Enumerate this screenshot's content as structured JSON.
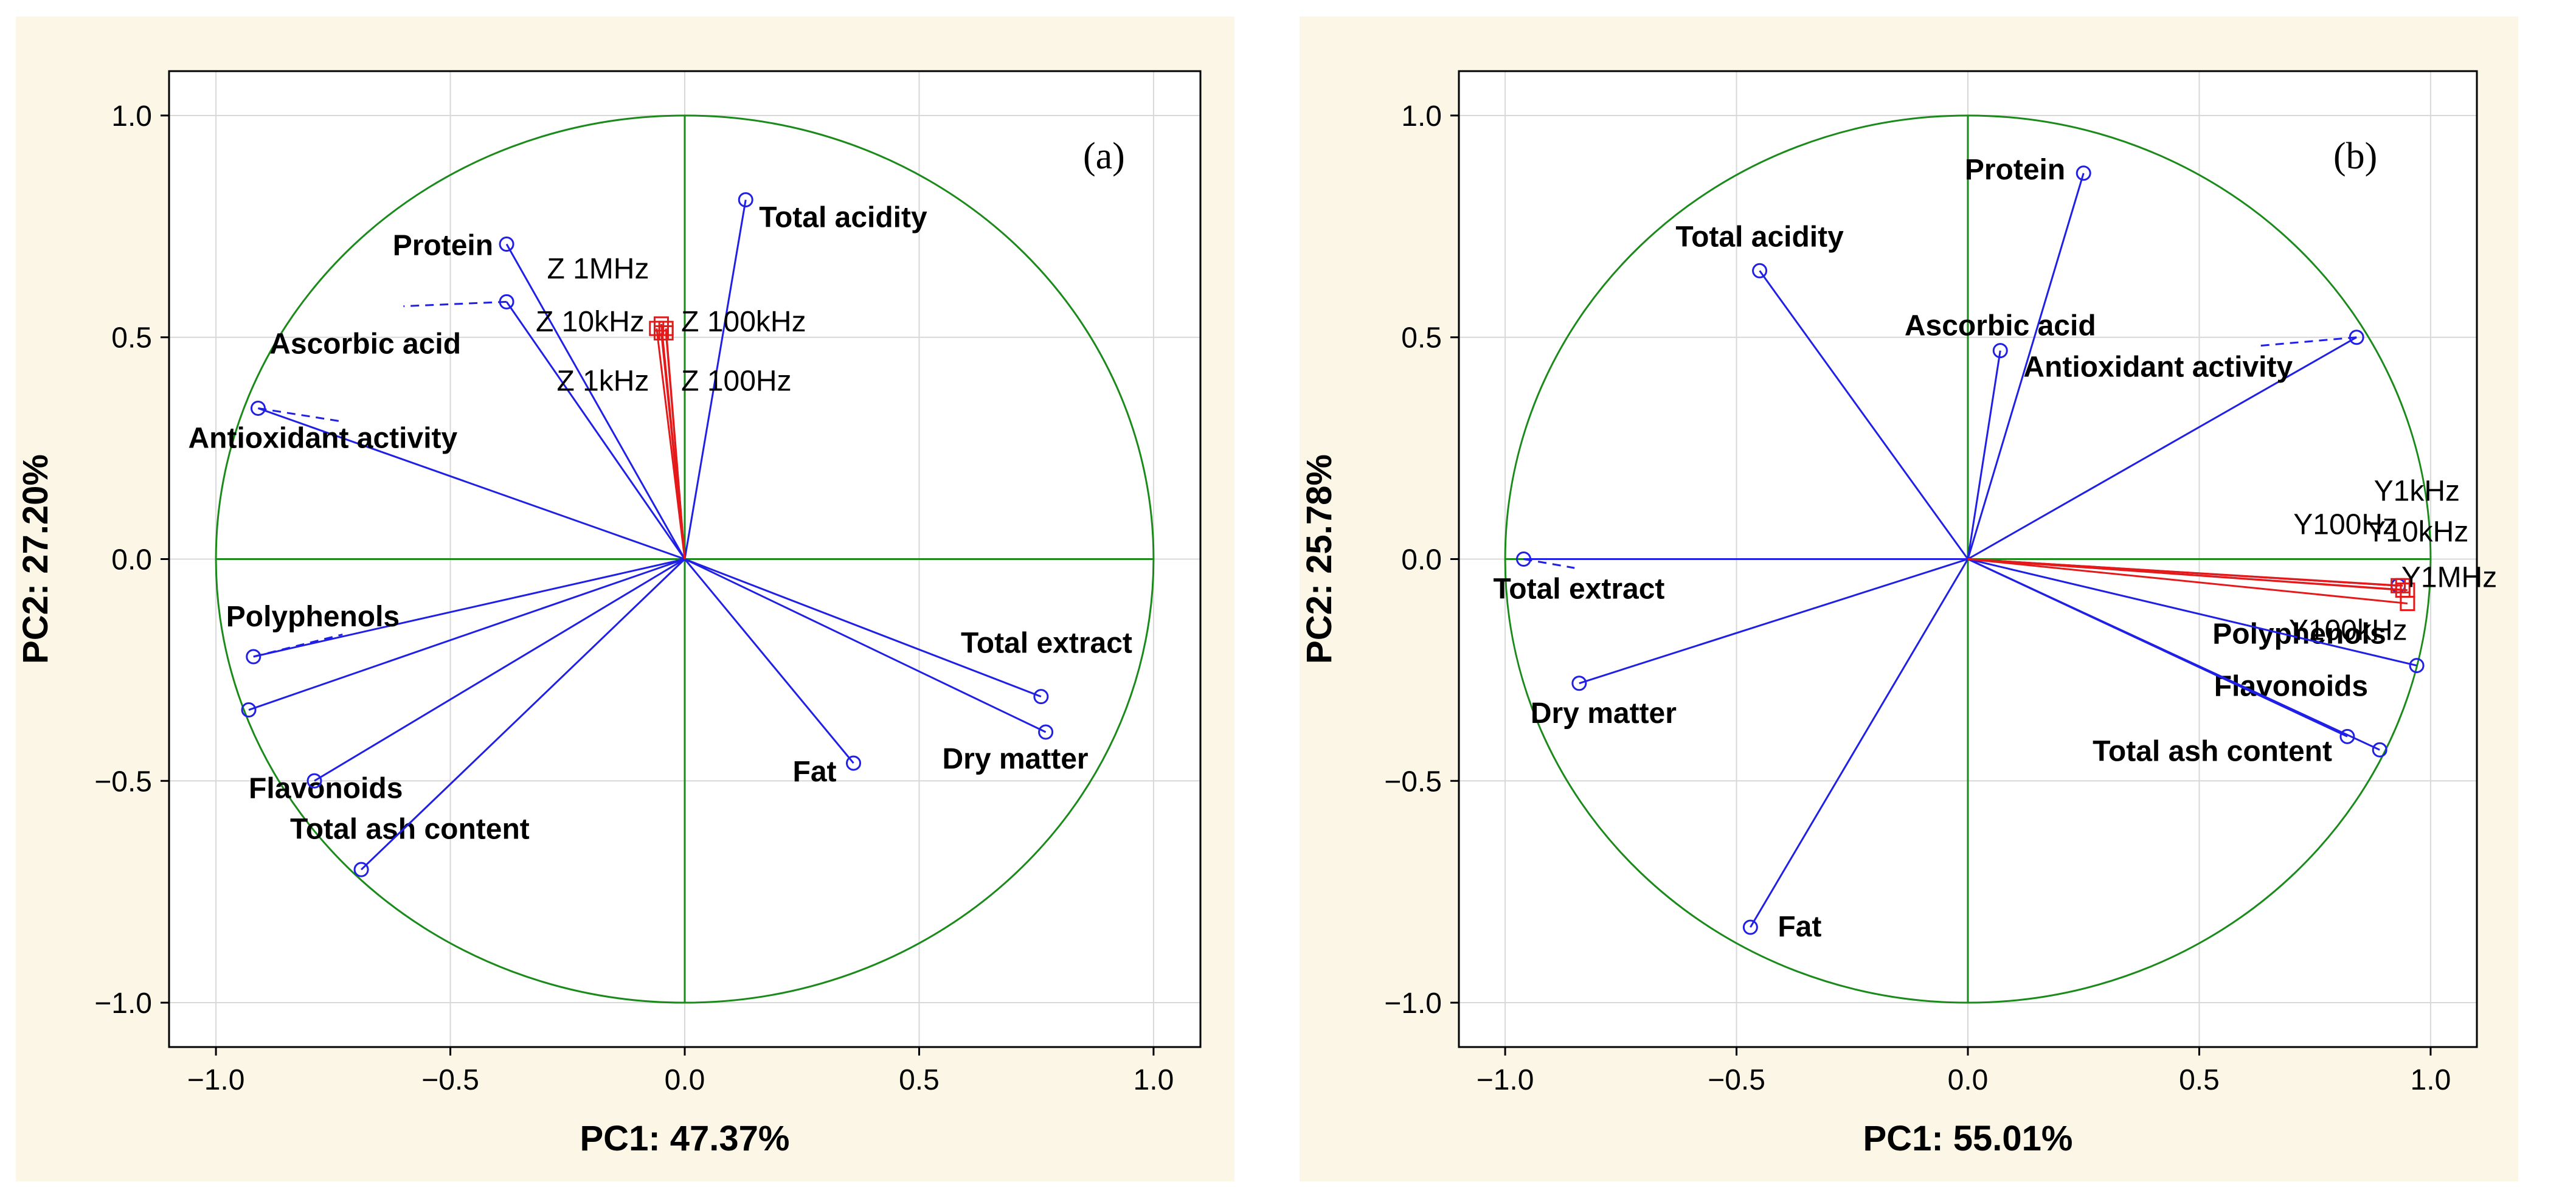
{
  "colors": {
    "background": "#fcf6e7",
    "plot_bg": "#ffffff",
    "circle": "#1a8a1a",
    "vector": "#1f1fe6",
    "impedance": "#e41a1a",
    "grid": "#d8d8d8"
  },
  "chart_data": [
    {
      "type": "scatter",
      "subtype": "pca-correlation-circle",
      "panel_label": "(a)",
      "xlabel": "PC1: 47.37%",
      "ylabel": "PC2: 27.20%",
      "xlim": [
        -1.1,
        1.1
      ],
      "ylim": [
        -1.1,
        1.1
      ],
      "x_ticks": [
        -1.0,
        -0.5,
        0.0,
        0.5,
        1.0
      ],
      "y_ticks": [
        -1.0,
        -0.5,
        0.0,
        0.5,
        1.0
      ],
      "x_tick_labels": [
        "−1.0",
        "−0.5",
        "0.0",
        "0.5",
        "1.0"
      ],
      "y_tick_labels": [
        "−1.0",
        "−0.5",
        "0.0",
        "0.5",
        "1.0"
      ],
      "grid": true,
      "variables": [
        {
          "name": "Total acidity",
          "x": 0.13,
          "y": 0.81
        },
        {
          "name": "Protein",
          "x": -0.38,
          "y": 0.71
        },
        {
          "name": "Ascorbic acid",
          "x": -0.38,
          "y": 0.58
        },
        {
          "name": "Antioxidant activity",
          "x": -0.91,
          "y": 0.34
        },
        {
          "name": "Polyphenols",
          "x": -0.92,
          "y": -0.22
        },
        {
          "name": "Flavonoids",
          "x": -0.93,
          "y": -0.34
        },
        {
          "name": "Total ash content",
          "x": -0.79,
          "y": -0.5
        },
        {
          "name": "Total ash content",
          "x": -0.69,
          "y": -0.7,
          "label": false
        },
        {
          "name": "Fat",
          "x": 0.36,
          "y": -0.46
        },
        {
          "name": "Total extract",
          "x": 0.76,
          "y": -0.31
        },
        {
          "name": "Dry matter",
          "x": 0.77,
          "y": -0.39
        }
      ],
      "impedance": [
        {
          "name": "Z 1MHz",
          "x": -0.05,
          "y": 0.53
        },
        {
          "name": "Z 10kHz",
          "x": -0.06,
          "y": 0.52
        },
        {
          "name": "Z 100kHz",
          "x": -0.04,
          "y": 0.52
        },
        {
          "name": "Z 1kHz",
          "x": -0.05,
          "y": 0.51
        },
        {
          "name": "Z 100Hz",
          "x": -0.04,
          "y": 0.51
        }
      ]
    },
    {
      "type": "scatter",
      "subtype": "pca-correlation-circle",
      "panel_label": "(b)",
      "xlabel": "PC1: 55.01%",
      "ylabel": "PC2: 25.78%",
      "xlim": [
        -1.1,
        1.1
      ],
      "ylim": [
        -1.1,
        1.1
      ],
      "x_ticks": [
        -1.0,
        -0.5,
        0.0,
        0.5,
        1.0
      ],
      "y_ticks": [
        -1.0,
        -0.5,
        0.0,
        0.5,
        1.0
      ],
      "x_tick_labels": [
        "−1.0",
        "−0.5",
        "0.0",
        "0.5",
        "1.0"
      ],
      "y_tick_labels": [
        "−1.0",
        "−0.5",
        "0.0",
        "0.5",
        "1.0"
      ],
      "grid": true,
      "variables": [
        {
          "name": "Protein",
          "x": 0.25,
          "y": 0.87
        },
        {
          "name": "Total acidity",
          "x": -0.45,
          "y": 0.65
        },
        {
          "name": "Ascorbic acid",
          "x": 0.07,
          "y": 0.47
        },
        {
          "name": "Antioxidant activity",
          "x": 0.84,
          "y": 0.5
        },
        {
          "name": "Total extract",
          "x": -0.96,
          "y": 0.0
        },
        {
          "name": "Dry matter",
          "x": -0.84,
          "y": -0.28
        },
        {
          "name": "Polyphenols",
          "x": 0.93,
          "y": -0.06
        },
        {
          "name": "Flavonoids",
          "x": 0.97,
          "y": -0.24
        },
        {
          "name": "Total ash content",
          "x": 0.82,
          "y": -0.4
        },
        {
          "name": "Total ash content",
          "x": 0.89,
          "y": -0.43,
          "label": false
        },
        {
          "name": "Fat",
          "x": -0.47,
          "y": -0.83
        }
      ],
      "impedance": [
        {
          "name": "Y1kHz",
          "x": 0.93,
          "y": -0.06
        },
        {
          "name": "Y100Hz",
          "x": 0.94,
          "y": -0.06
        },
        {
          "name": "Y10kHz",
          "x": 0.94,
          "y": -0.07
        },
        {
          "name": "Y100kHz",
          "x": 0.95,
          "y": -0.1
        },
        {
          "name": "Y1MHz",
          "x": 0.95,
          "y": -0.07
        }
      ]
    }
  ]
}
